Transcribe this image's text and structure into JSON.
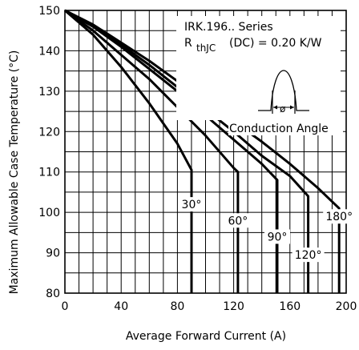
{
  "chart_data": {
    "type": "line",
    "title": "",
    "xlabel": "Average Forward Current (A)",
    "ylabel": "Maximum Allowable Case Temperature (°C)",
    "xlim": [
      0,
      200
    ],
    "ylim": [
      80,
      150
    ],
    "x_ticks": [
      "0",
      "40",
      "80",
      "120",
      "160",
      "200"
    ],
    "y_ticks": [
      "80",
      "90",
      "100",
      "110",
      "120",
      "130",
      "140",
      "150"
    ],
    "grid": true,
    "annotations": {
      "series_title": "IRK.196.. Series",
      "rth_main": "R",
      "rth_sub": "thJC",
      "rth_rest": "(DC) = 0.20 K/W",
      "phi": "ø",
      "conduction": "Conduction Angle"
    },
    "series": [
      {
        "name": "30°",
        "points": [
          [
            0,
            150
          ],
          [
            20,
            144
          ],
          [
            40,
            136
          ],
          [
            60,
            127
          ],
          [
            80,
            117
          ],
          [
            90,
            110.5
          ],
          [
            90,
            80
          ]
        ]
      },
      {
        "name": "60°",
        "points": [
          [
            0,
            150
          ],
          [
            20,
            145
          ],
          [
            40,
            139
          ],
          [
            60,
            133
          ],
          [
            80,
            126
          ],
          [
            100,
            119
          ],
          [
            120,
            111
          ],
          [
            123,
            110
          ],
          [
            123,
            80
          ]
        ]
      },
      {
        "name": "90°",
        "points": [
          [
            0,
            150
          ],
          [
            20,
            146
          ],
          [
            40,
            141
          ],
          [
            60,
            135.5
          ],
          [
            80,
            130
          ],
          [
            100,
            124
          ],
          [
            120,
            118
          ],
          [
            140,
            112
          ],
          [
            151,
            108
          ],
          [
            151,
            80
          ]
        ]
      },
      {
        "name": "120°",
        "points": [
          [
            0,
            150
          ],
          [
            20,
            146
          ],
          [
            40,
            141.5
          ],
          [
            60,
            136.5
          ],
          [
            80,
            131
          ],
          [
            100,
            125.5
          ],
          [
            120,
            120
          ],
          [
            140,
            114
          ],
          [
            160,
            109
          ],
          [
            173,
            104
          ],
          [
            173,
            80
          ]
        ]
      },
      {
        "name": "180°",
        "points": [
          [
            0,
            150
          ],
          [
            20,
            146.5
          ],
          [
            40,
            142
          ],
          [
            60,
            137.5
          ],
          [
            80,
            132.5
          ],
          [
            100,
            127.5
          ],
          [
            120,
            122.5
          ],
          [
            140,
            117.5
          ],
          [
            160,
            112
          ],
          [
            180,
            106
          ],
          [
            195,
            101
          ],
          [
            195,
            80
          ]
        ]
      }
    ]
  }
}
